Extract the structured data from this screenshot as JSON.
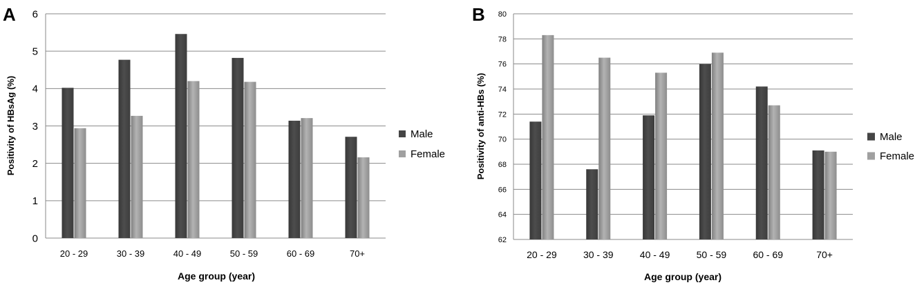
{
  "chart_data": [
    {
      "panel_label": "A",
      "type": "bar",
      "categories": [
        "20 - 29",
        "30 - 39",
        "40 - 49",
        "50 - 59",
        "60 - 69",
        "70+"
      ],
      "series": [
        {
          "name": "Male",
          "values": [
            4.02,
            4.77,
            5.46,
            4.82,
            3.14,
            2.71
          ],
          "color": "#454545"
        },
        {
          "name": "Female",
          "values": [
            2.94,
            3.27,
            4.2,
            4.18,
            3.21,
            2.16
          ],
          "color": "#a0a0a0"
        }
      ],
      "title": "",
      "xlabel": "Age group (year)",
      "ylabel": "Positivity of HBsAg (%)",
      "ylim": [
        0,
        6
      ],
      "yticks": [
        "0",
        "1",
        "2",
        "3",
        "4",
        "5",
        "6"
      ],
      "grid": true,
      "legend_position": "right"
    },
    {
      "panel_label": "B",
      "type": "bar",
      "categories": [
        "20 - 29",
        "30 - 39",
        "40 - 49",
        "50 - 59",
        "60 - 69",
        "70+"
      ],
      "series": [
        {
          "name": "Male",
          "values": [
            71.4,
            67.6,
            71.9,
            76.0,
            74.2,
            69.1
          ],
          "color": "#454545"
        },
        {
          "name": "Female",
          "values": [
            78.3,
            76.5,
            75.3,
            76.9,
            72.7,
            69.0
          ],
          "color": "#a0a0a0"
        }
      ],
      "title": "",
      "xlabel": "Age group (year)",
      "ylabel": "Positivity of anti-HBs (%)",
      "ylim": [
        62,
        80
      ],
      "yticks": [
        "62",
        "64",
        "66",
        "68",
        "70",
        "72",
        "74",
        "76",
        "78",
        "80"
      ],
      "grid": true,
      "legend_position": "right"
    }
  ]
}
